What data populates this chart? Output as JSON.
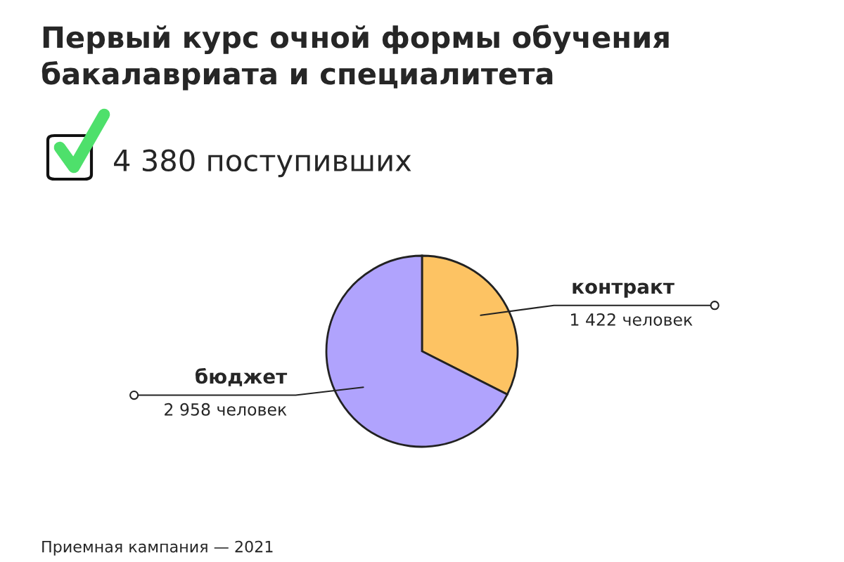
{
  "chart_data": {
    "type": "pie",
    "title": "Первый курс очной формы обучения\nбакалавриата и специалитета",
    "subtitle": "4 380 поступивших",
    "categories": [
      "контракт",
      "бюджет"
    ],
    "values": [
      1422,
      2958
    ],
    "value_labels": [
      "1 422 человек",
      "2 958 человек"
    ],
    "colors": [
      "#fdc363",
      "#b0a3fd"
    ],
    "annotations": [
      "Приемная кампания — 2021"
    ],
    "legend": false
  }
}
